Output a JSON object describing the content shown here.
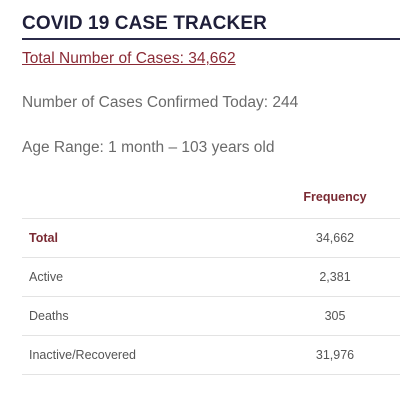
{
  "header": {
    "title": "COVID 19 CASE TRACKER"
  },
  "summary": {
    "total_link": "Total Number of Cases: 34,662",
    "confirmed_today": "Number of Cases Confirmed Today: 244",
    "age_range": "Age Range: 1 month – 103 years old"
  },
  "table": {
    "column_header": "Frequency",
    "rows": [
      {
        "label": "Total",
        "value": "34,662"
      },
      {
        "label": "Active",
        "value": "2,381"
      },
      {
        "label": "Deaths",
        "value": "305"
      },
      {
        "label": "Inactive/Recovered",
        "value": "31,976"
      }
    ]
  },
  "colors": {
    "title": "#1f1f3a",
    "accent": "#7a2a33",
    "link": "#8a2a35",
    "muted_text": "#6a6a6a"
  }
}
